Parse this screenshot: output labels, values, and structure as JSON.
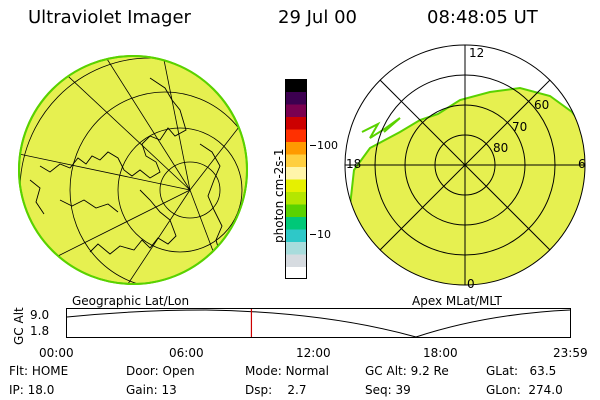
{
  "header": {
    "instrument": "Ultraviolet Imager",
    "date": "29 Jul 00",
    "time": "08:48:05 UT"
  },
  "colorbar": {
    "unit_label": "photon cm-2s-1",
    "ticks": [
      "100",
      "10"
    ],
    "colors": [
      "#ffffff",
      "#d6dbe0",
      "#a8dcdc",
      "#2ec8c8",
      "#00c878",
      "#5ad200",
      "#b4e600",
      "#e6f000",
      "#fff5aa",
      "#ffcf40",
      "#ff9a00",
      "#ff3000",
      "#cc0000",
      "#7a0050",
      "#3c0050",
      "#000000"
    ]
  },
  "left_map": {
    "caption": "Geographic Lat/Lon",
    "fill_color": "#e6f050",
    "edge_color": "#5ad200"
  },
  "right_map": {
    "caption": "Apex MLat/MLT",
    "mlt_labels": {
      "top": "12",
      "left": "18",
      "right": "6",
      "bottom": "0"
    },
    "lat_labels": [
      "60",
      "70",
      "80"
    ],
    "fill_color": "#e6f050"
  },
  "timeline": {
    "axis_title": "GC Alt",
    "y_max": "9.0",
    "y_min": "1.8",
    "x_ticks": [
      "00:00",
      "06:00",
      "12:00",
      "18:00",
      "23:59"
    ],
    "marker_color": "#cc0000",
    "marker_time_hours": 8.8
  },
  "status": {
    "flt": {
      "label": "Flt:",
      "value": "HOME"
    },
    "ip": {
      "label": "IP:",
      "value": "18.0"
    },
    "door": {
      "label": "Door:",
      "value": "Open"
    },
    "gain": {
      "label": "Gain:",
      "value": "13"
    },
    "mode": {
      "label": "Mode:",
      "value": "Normal"
    },
    "dsp": {
      "label": "Dsp:",
      "value": "2.7"
    },
    "gcalt": {
      "label": "GC Alt:",
      "value": "9.2 Re"
    },
    "seq": {
      "label": "Seq:",
      "value": "39"
    },
    "glat": {
      "label": "GLat:",
      "value": "63.5"
    },
    "glon": {
      "label": "GLon:",
      "value": "274.0"
    }
  }
}
